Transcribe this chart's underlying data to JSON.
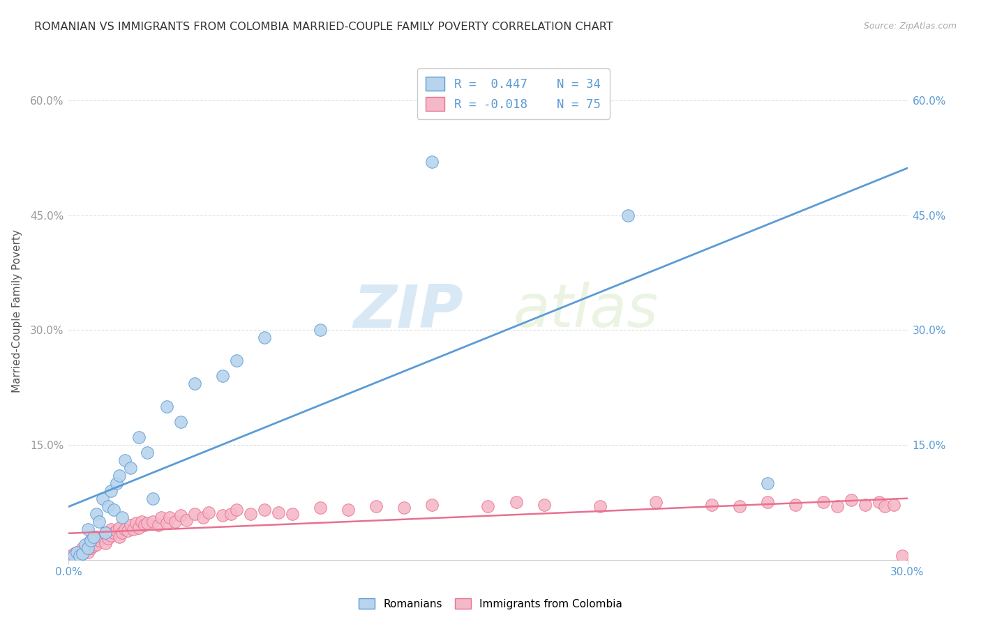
{
  "title": "ROMANIAN VS IMMIGRANTS FROM COLOMBIA MARRIED-COUPLE FAMILY POVERTY CORRELATION CHART",
  "source": "Source: ZipAtlas.com",
  "ylabel": "Married-Couple Family Poverty",
  "xlim": [
    0.0,
    0.3
  ],
  "ylim": [
    0.0,
    0.65
  ],
  "yticks": [
    0.0,
    0.15,
    0.3,
    0.45,
    0.6
  ],
  "ytick_labels": [
    "",
    "15.0%",
    "30.0%",
    "45.0%",
    "60.0%"
  ],
  "xticks": [
    0.0,
    0.3
  ],
  "xtick_labels": [
    "0.0%",
    "30.0%"
  ],
  "romanian_color": "#b8d4ed",
  "colombia_color": "#f5b8c8",
  "line_romanian_color": "#5b9bd5",
  "line_colombia_color": "#e87090",
  "R_romanian": 0.447,
  "N_romanian": 34,
  "R_colombia": -0.018,
  "N_colombia": 75,
  "legend_label_1": "Romanians",
  "legend_label_2": "Immigrants from Colombia",
  "watermark_zip": "ZIP",
  "watermark_atlas": "atlas",
  "background_color": "#ffffff",
  "grid_color": "#e0e0e0",
  "romanian_x": [
    0.002,
    0.003,
    0.004,
    0.005,
    0.006,
    0.007,
    0.007,
    0.008,
    0.009,
    0.01,
    0.011,
    0.012,
    0.013,
    0.014,
    0.015,
    0.016,
    0.017,
    0.018,
    0.019,
    0.02,
    0.022,
    0.025,
    0.028,
    0.03,
    0.035,
    0.04,
    0.045,
    0.055,
    0.06,
    0.07,
    0.09,
    0.13,
    0.2,
    0.25
  ],
  "romanian_y": [
    0.005,
    0.01,
    0.005,
    0.008,
    0.02,
    0.015,
    0.04,
    0.025,
    0.03,
    0.06,
    0.05,
    0.08,
    0.035,
    0.07,
    0.09,
    0.065,
    0.1,
    0.11,
    0.055,
    0.13,
    0.12,
    0.16,
    0.14,
    0.08,
    0.2,
    0.18,
    0.23,
    0.24,
    0.26,
    0.29,
    0.3,
    0.52,
    0.45,
    0.1
  ],
  "colombia_x": [
    0.001,
    0.002,
    0.003,
    0.004,
    0.005,
    0.005,
    0.006,
    0.007,
    0.007,
    0.008,
    0.008,
    0.009,
    0.01,
    0.01,
    0.011,
    0.012,
    0.013,
    0.013,
    0.014,
    0.015,
    0.015,
    0.016,
    0.017,
    0.018,
    0.018,
    0.019,
    0.02,
    0.021,
    0.022,
    0.023,
    0.024,
    0.025,
    0.026,
    0.027,
    0.028,
    0.03,
    0.032,
    0.033,
    0.035,
    0.036,
    0.038,
    0.04,
    0.042,
    0.045,
    0.048,
    0.05,
    0.055,
    0.058,
    0.06,
    0.065,
    0.07,
    0.075,
    0.08,
    0.09,
    0.1,
    0.11,
    0.12,
    0.13,
    0.15,
    0.16,
    0.17,
    0.19,
    0.21,
    0.23,
    0.24,
    0.25,
    0.26,
    0.27,
    0.275,
    0.28,
    0.285,
    0.29,
    0.292,
    0.295,
    0.298
  ],
  "colombia_y": [
    0.005,
    0.008,
    0.01,
    0.005,
    0.015,
    0.008,
    0.012,
    0.01,
    0.02,
    0.015,
    0.025,
    0.018,
    0.02,
    0.03,
    0.025,
    0.03,
    0.022,
    0.035,
    0.028,
    0.032,
    0.04,
    0.035,
    0.038,
    0.03,
    0.042,
    0.035,
    0.04,
    0.038,
    0.045,
    0.04,
    0.048,
    0.042,
    0.05,
    0.045,
    0.048,
    0.05,
    0.045,
    0.055,
    0.048,
    0.055,
    0.05,
    0.058,
    0.052,
    0.06,
    0.055,
    0.062,
    0.058,
    0.06,
    0.065,
    0.06,
    0.065,
    0.062,
    0.06,
    0.068,
    0.065,
    0.07,
    0.068,
    0.072,
    0.07,
    0.075,
    0.072,
    0.07,
    0.075,
    0.072,
    0.07,
    0.075,
    0.072,
    0.075,
    0.07,
    0.078,
    0.072,
    0.075,
    0.07,
    0.072,
    0.005
  ]
}
